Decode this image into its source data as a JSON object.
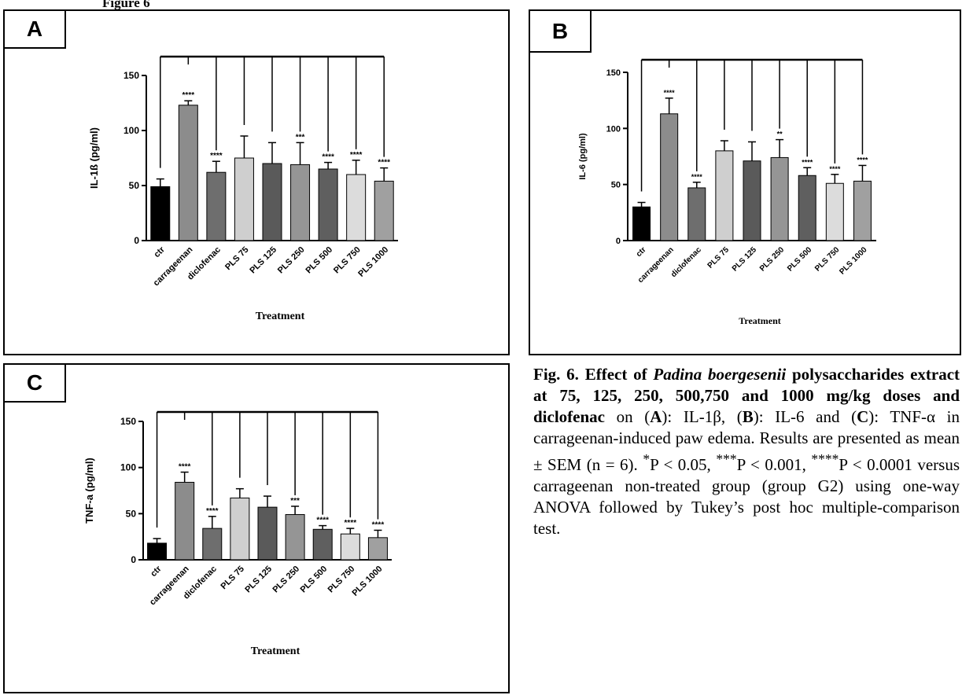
{
  "page": {
    "top_fragment": "Figure 6"
  },
  "panels": [
    {
      "id": "A",
      "label": "A"
    },
    {
      "id": "B",
      "label": "B"
    },
    {
      "id": "C",
      "label": "C"
    }
  ],
  "caption": {
    "fig_label": "Fig. 6.",
    "bold_pre": "Effect of",
    "species": "Padina boergesenii",
    "bold_post": "polysaccharides extract at 75, 125, 250, 500,750 and 1000 mg/kg doses and diclofenac",
    "on": "on (",
    "a_letter": "A",
    "a_text": "): IL-1β, (",
    "b_letter": "B",
    "b_text": "): IL-6 and (",
    "c_letter": "C",
    "c_text": "): TNF-α in carrageenan-induced paw edema. Results are presented as mean ± SEM (n = 6). ",
    "p1": "*",
    "p1_text": "P < 0.05, ",
    "p2": "***",
    "p2_text": "P < 0.001, ",
    "p3": "****",
    "p3_text": "P < 0.0001 versus carrageenan non-treated group (group G2) using one-way ANOVA followed by Tukey’s post hoc multiple-comparison test."
  },
  "chart_data": [
    {
      "panel": "A",
      "type": "bar",
      "ylabel": "IL-1ß (pg/ml)",
      "xlabel": "Treatment",
      "ylim": [
        0,
        150
      ],
      "yticks": [
        0,
        50,
        100,
        150
      ],
      "categories": [
        "ctr",
        "carrageenan",
        "diclofenac",
        "PLS 75",
        "PLS 125",
        "PLS 250",
        "PLS 500",
        "PLS 750",
        "PLS 1000"
      ],
      "values": [
        49,
        123,
        62,
        75,
        70,
        69,
        65,
        60,
        54
      ],
      "errors": [
        7,
        4,
        10,
        20,
        19,
        20,
        6,
        13,
        12
      ],
      "significance": [
        "",
        "****",
        "****",
        "",
        "",
        "***",
        "****",
        "****",
        "****"
      ],
      "colors": [
        "#000000",
        "#8c8c8c",
        "#6e6e6e",
        "#cfcfcf",
        "#5a5a5a",
        "#959595",
        "#5f5f5f",
        "#dcdcdc",
        "#a0a0a0"
      ]
    },
    {
      "panel": "B",
      "type": "bar",
      "ylabel": "IL-6 (pg/ml)",
      "xlabel": "Treatment",
      "ylim": [
        0,
        150
      ],
      "yticks": [
        0,
        50,
        100,
        150
      ],
      "categories": [
        "ctr",
        "carrageenan",
        "diclofenac",
        "PLS 75",
        "PLS 125",
        "PLS 250",
        "PLS 500",
        "PLS 750",
        "PLS 1000"
      ],
      "values": [
        30,
        113,
        47,
        80,
        71,
        74,
        58,
        51,
        53
      ],
      "errors": [
        4,
        14,
        5,
        9,
        17,
        16,
        7,
        8,
        14
      ],
      "significance": [
        "",
        "****",
        "****",
        "",
        "",
        "**",
        "****",
        "****",
        "****"
      ],
      "colors": [
        "#000000",
        "#8c8c8c",
        "#6e6e6e",
        "#cfcfcf",
        "#5a5a5a",
        "#959595",
        "#5f5f5f",
        "#dcdcdc",
        "#a0a0a0"
      ]
    },
    {
      "panel": "C",
      "type": "bar",
      "ylabel": "TNF-a (pg/ml)",
      "xlabel": "Treatment",
      "ylim": [
        0,
        150
      ],
      "yticks": [
        0,
        50,
        100,
        150
      ],
      "categories": [
        "ctr",
        "carrageenan",
        "diclofenac",
        "PLS 75",
        "PLS 125",
        "PLS 250",
        "PLS 500",
        "PLS 750",
        "PLS 1000"
      ],
      "values": [
        18,
        84,
        34,
        67,
        57,
        49,
        33,
        28,
        24
      ],
      "errors": [
        5,
        11,
        13,
        10,
        12,
        9,
        4,
        6,
        8
      ],
      "significance": [
        "",
        "****",
        "****",
        "",
        "",
        "***",
        "****",
        "****",
        "****"
      ],
      "colors": [
        "#000000",
        "#8c8c8c",
        "#6e6e6e",
        "#cfcfcf",
        "#5a5a5a",
        "#959595",
        "#5f5f5f",
        "#dcdcdc",
        "#a0a0a0"
      ]
    }
  ]
}
